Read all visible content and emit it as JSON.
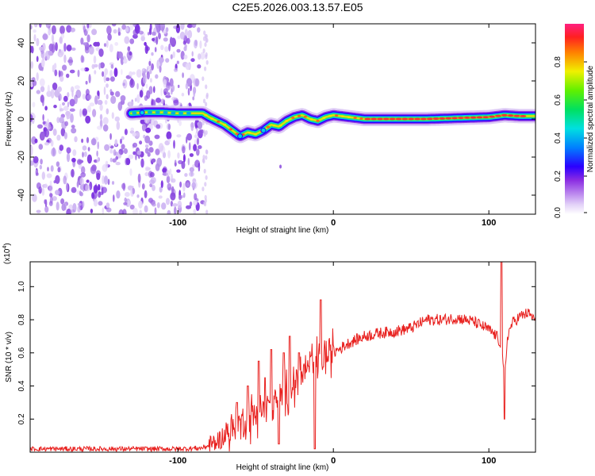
{
  "title": "C2E5.2026.003.13.57.E05",
  "colors": {
    "snr_line": "#e8201e",
    "frame": "#000000"
  },
  "chart_data": [
    {
      "type": "heatmap",
      "id": "spectrogram",
      "xlabel": "Height of straight line (km)",
      "ylabel": "Frequency (Hz)",
      "xlim": [
        -195,
        130
      ],
      "ylim": [
        -50,
        50
      ],
      "xticks": [
        -100,
        0,
        100
      ],
      "xtick_labels": [
        "-100",
        "0",
        "100"
      ],
      "yticks": [
        -40,
        -20,
        0,
        20,
        40
      ],
      "ytick_labels": [
        "-40",
        "-20",
        "0",
        "20",
        "40"
      ],
      "noise_region_x": [
        -195,
        -84
      ],
      "ridge_x": [
        -130,
        -120,
        -110,
        -100,
        -90,
        -84,
        -80,
        -75,
        -70,
        -65,
        -60,
        -55,
        -50,
        -45,
        -40,
        -35,
        -30,
        -25,
        -20,
        -15,
        -10,
        -5,
        0,
        10,
        20,
        40,
        60,
        80,
        100,
        110,
        120,
        130
      ],
      "ridge_freq": [
        3,
        3.5,
        3.5,
        3,
        3,
        3,
        1,
        -1,
        -3,
        -6,
        -9,
        -7,
        -8,
        -6,
        -3,
        -4,
        -1,
        1,
        2,
        0,
        -1,
        1,
        2,
        1,
        0,
        0,
        0,
        0.5,
        1,
        2,
        1.5,
        1.5
      ],
      "colorbar": {
        "label": "Normalized spectral amplitude",
        "range": [
          0,
          1
        ],
        "ticks": [
          0.0,
          0.2,
          0.4,
          0.6,
          0.8
        ],
        "tick_labels": [
          "0.0",
          "0.2",
          "0.4",
          "0.6",
          "0.8"
        ]
      }
    },
    {
      "type": "line",
      "id": "snr",
      "xlabel": "Height of straight line (km)",
      "ylabel": "SNR (10 * v/v)",
      "scale_label": "(x10",
      "scale_exponent": "4",
      "xlim": [
        -195,
        130
      ],
      "ylim": [
        0,
        1.15
      ],
      "xticks": [
        -100,
        0,
        100
      ],
      "xtick_labels": [
        "-100",
        "0",
        "100"
      ],
      "yticks": [
        0.2,
        0.4,
        0.6,
        0.8,
        1.0
      ],
      "ytick_labels": [
        "0.2",
        "0.4",
        "0.6",
        "0.8",
        "1.0"
      ],
      "envelope_x": [
        -195,
        -150,
        -100,
        -85,
        -80,
        -75,
        -70,
        -65,
        -60,
        -55,
        -50,
        -45,
        -40,
        -35,
        -30,
        -25,
        -20,
        -15,
        -10,
        -5,
        0,
        5,
        10,
        20,
        30,
        40,
        50,
        60,
        70,
        80,
        90,
        100,
        105,
        108,
        110,
        112,
        115,
        120,
        125,
        130
      ],
      "envelope_y": [
        0.02,
        0.02,
        0.02,
        0.025,
        0.04,
        0.06,
        0.1,
        0.14,
        0.17,
        0.2,
        0.23,
        0.26,
        0.3,
        0.32,
        0.36,
        0.42,
        0.48,
        0.52,
        0.56,
        0.58,
        0.6,
        0.63,
        0.66,
        0.7,
        0.72,
        0.73,
        0.75,
        0.8,
        0.8,
        0.81,
        0.79,
        0.74,
        0.7,
        0.65,
        0.42,
        0.7,
        0.78,
        0.82,
        0.84,
        0.8
      ],
      "spikes_x": [
        -62,
        -55,
        -48,
        -44,
        -40,
        -35,
        -32,
        -28,
        -22,
        -16,
        -8,
        108
      ],
      "spikes_y": [
        0.3,
        0.4,
        0.55,
        0.45,
        0.62,
        0.97,
        0.6,
        0.7,
        0.6,
        0.52,
        0.92,
        1.15
      ],
      "dips_x": [
        -35,
        -12,
        110
      ],
      "dips_y": [
        0.05,
        0.02,
        0.2
      ]
    }
  ]
}
